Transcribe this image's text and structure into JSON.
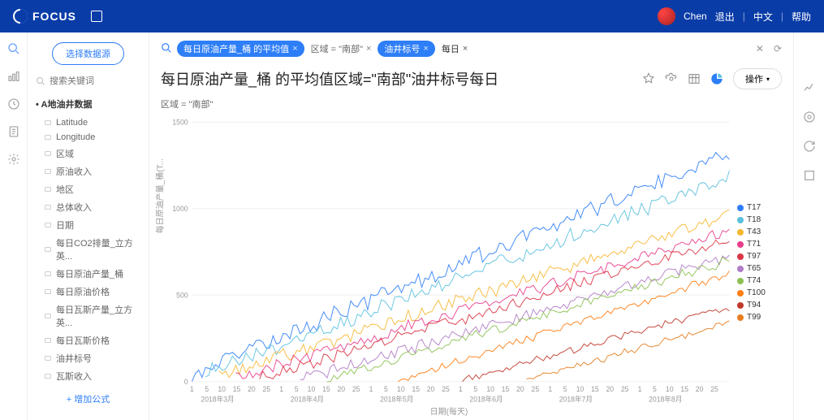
{
  "app": {
    "name": "FOCUS"
  },
  "user": {
    "name": "Chen"
  },
  "topLinks": {
    "logout": "退出",
    "lang": "中文",
    "help": "帮助"
  },
  "sidebar": {
    "selectSource": "选择数据源",
    "searchPlaceholder": "搜索关键词",
    "addFormula": "+ 增加公式",
    "treeTitle": "A地油井数据",
    "fields": [
      "Latitude",
      "Longitude",
      "区域",
      "原油收入",
      "地区",
      "总体收入",
      "日期",
      "每日CO2排量_立方英...",
      "每日原油产量_桶",
      "每日原油价格",
      "每日瓦斯产量_立方英...",
      "每日瓦斯价格",
      "油井标号",
      "瓦斯收入"
    ]
  },
  "query": {
    "pills": [
      {
        "text": "每日原油产量_桶 的平均值",
        "kind": "blue",
        "close": true
      },
      {
        "text": "区域 = \"南部\"",
        "kind": "ghost",
        "close": true
      },
      {
        "text": "油井标号",
        "kind": "blue",
        "close": true
      },
      {
        "text": "每日",
        "kind": "txt",
        "close": true
      }
    ]
  },
  "page": {
    "title": "每日原油产量_桶 的平均值区域=\"南部\"油井标号每日",
    "subtitle": "区域 = \"南部\"",
    "opLabel": "操作",
    "yAxisTitle": "每日原油产量_桶(T...",
    "xAxisTitle": "日期(每天)"
  },
  "chart": {
    "type": "line",
    "bg": "#ffffff",
    "grid": "#f0f0f0",
    "ylim": [
      0,
      1500
    ],
    "yticks": [
      0,
      500,
      1000,
      1500
    ],
    "xMonths": [
      "2018年3月",
      "2018年4月",
      "2018年5月",
      "2018年6月",
      "2018年7月",
      "2018年8月"
    ],
    "xDayTicks": [
      1,
      5,
      10,
      15,
      20,
      25
    ],
    "series": [
      {
        "name": "T17",
        "color": "#2d7ef7",
        "amp": 45,
        "start": 50,
        "end": 1320,
        "x0": 0.0
      },
      {
        "name": "T18",
        "color": "#5bc0de",
        "amp": 40,
        "start": 40,
        "end": 1180,
        "x0": 0.02
      },
      {
        "name": "T43",
        "color": "#f7b731",
        "amp": 35,
        "start": 30,
        "end": 960,
        "x0": 0.05
      },
      {
        "name": "T71",
        "color": "#e83e8c",
        "amp": 30,
        "start": 20,
        "end": 870,
        "x0": 0.08
      },
      {
        "name": "T97",
        "color": "#dc3545",
        "amp": 32,
        "start": 15,
        "end": 820,
        "x0": 0.12
      },
      {
        "name": "T65",
        "color": "#b07cc6",
        "amp": 28,
        "start": 10,
        "end": 720,
        "x0": 0.2
      },
      {
        "name": "T74",
        "color": "#8cc152",
        "amp": 25,
        "start": 10,
        "end": 700,
        "x0": 0.25
      },
      {
        "name": "T100",
        "color": "#fd7e14",
        "amp": 22,
        "start": 5,
        "end": 620,
        "x0": 0.38
      },
      {
        "name": "T94",
        "color": "#c0392b",
        "amp": 20,
        "start": 5,
        "end": 430,
        "x0": 0.5
      },
      {
        "name": "T99",
        "color": "#e67e22",
        "amp": 18,
        "start": 5,
        "end": 340,
        "x0": 0.62
      }
    ]
  }
}
